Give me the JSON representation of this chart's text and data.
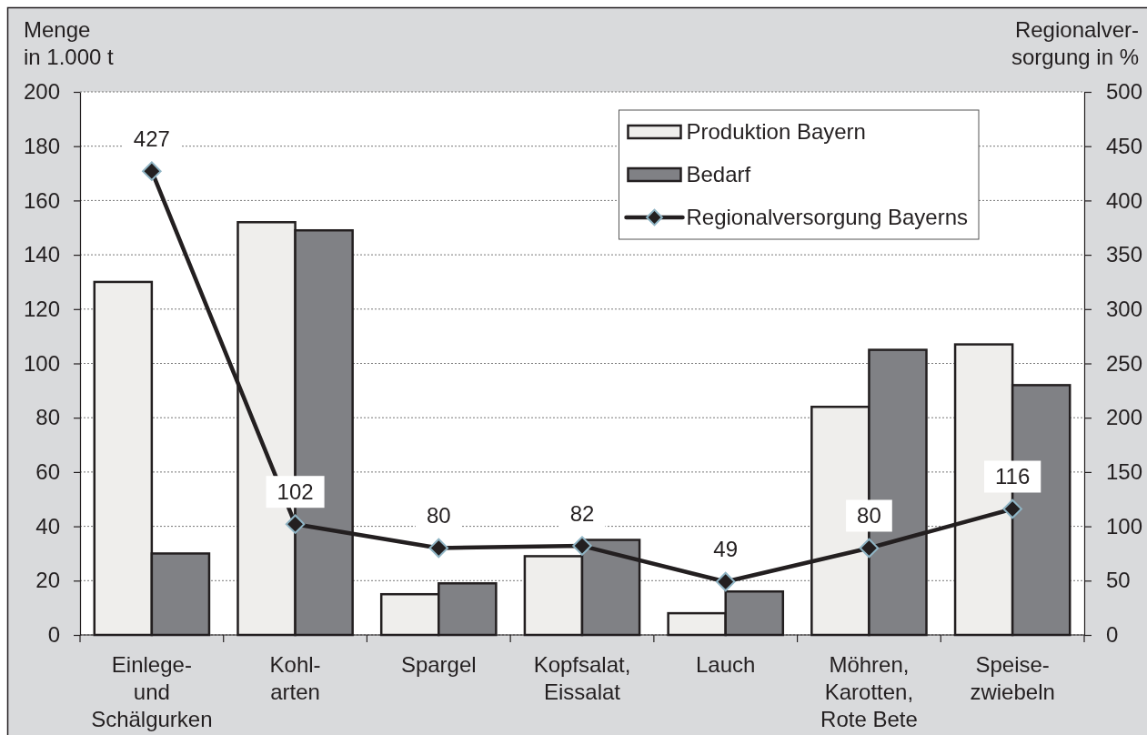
{
  "chart_data": {
    "type": "bar",
    "categories": [
      "Einlege-\nund\nSchälgurken",
      "Kohl-\narten",
      "Spargel",
      "Kopfsalat,\nEissalat",
      "Lauch",
      "Möhren,\nKarotten,\nRote Bete",
      "Speise-\nzwiebeln"
    ],
    "ylabel": "Menge\nin 1.000 t",
    "y2label": "Regionalver-\nsorgung in %",
    "ylim": [
      0,
      200
    ],
    "yticks": [
      0,
      20,
      40,
      60,
      80,
      100,
      120,
      140,
      160,
      180,
      200
    ],
    "y2lim": [
      0,
      500
    ],
    "y2ticks": [
      0,
      50,
      100,
      150,
      200,
      250,
      300,
      350,
      400,
      450,
      500
    ],
    "grid": "y",
    "legend": "top right",
    "series": [
      {
        "name": "Produktion Bayern",
        "color": "#efeeec",
        "values": [
          130,
          152,
          15,
          29,
          8,
          84,
          107
        ]
      },
      {
        "name": "Bedarf",
        "color": "#808185",
        "values": [
          30,
          149,
          19,
          35,
          16,
          105,
          92
        ]
      },
      {
        "name": "Regionalversorgung Bayerns",
        "type": "line",
        "axis": "y2",
        "color": "#231f20",
        "marker": "diamond",
        "values": [
          427,
          102,
          80,
          82,
          49,
          80,
          116
        ],
        "value_labels": [
          "427",
          "102",
          "80",
          "82",
          "49",
          "80",
          "116"
        ]
      }
    ]
  }
}
